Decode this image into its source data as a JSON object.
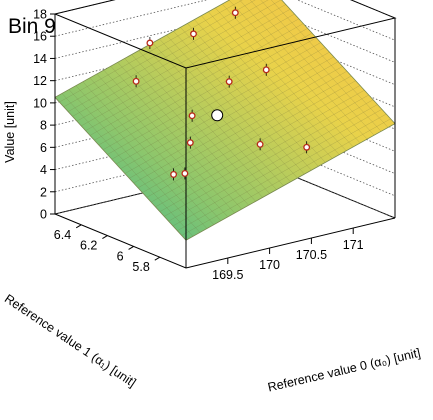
{
  "chart_data": {
    "type": "surface3d",
    "title": "Bin 9",
    "xlabel": "Reference value 0 (α₀) [unit]",
    "ylabel": "Reference value 1 (α₁) [unit]",
    "zlabel": "Value [unit]",
    "xlim": [
      169.0,
      171.5
    ],
    "ylim": [
      5.6,
      6.6
    ],
    "zlim": [
      0,
      18
    ],
    "x_ticks": [
      "169.5",
      "170",
      "170.5",
      "171"
    ],
    "y_ticks": [
      "5.8",
      "6",
      "6.2",
      "6.4"
    ],
    "z_ticks": [
      "0",
      "2",
      "4",
      "6",
      "8",
      "10",
      "12",
      "14",
      "16",
      "18"
    ],
    "surface": {
      "model": "plane",
      "corner_values": {
        "x_min_y_max": 10.5,
        "x_max_y_max": 16.5,
        "x_min_y_min": 2.5,
        "x_max_y_min": 8.5
      },
      "colormap": [
        "#2fb597",
        "#8cc66c",
        "#e9d24a",
        "#f9bd45"
      ]
    },
    "points": [
      {
        "x": 169.5,
        "y": 6.3,
        "z": 12.5
      },
      {
        "x": 169.9,
        "y": 6.45,
        "z": 14.5
      },
      {
        "x": 170.5,
        "y": 6.5,
        "z": 14.0
      },
      {
        "x": 171.0,
        "y": 6.5,
        "z": 15.0
      },
      {
        "x": 170.3,
        "y": 6.1,
        "z": 12.0
      },
      {
        "x": 169.7,
        "y": 6.0,
        "z": 10.5
      },
      {
        "x": 170.9,
        "y": 6.2,
        "z": 11.5
      },
      {
        "x": 169.6,
        "y": 5.95,
        "z": 8.5
      },
      {
        "x": 170.2,
        "y": 5.8,
        "z": 8.0
      },
      {
        "x": 170.6,
        "y": 5.7,
        "z": 7.5
      },
      {
        "x": 169.3,
        "y": 5.8,
        "z": 7.0
      },
      {
        "x": 169.4,
        "y": 5.95,
        "z": 6.0
      }
    ],
    "reference_point": {
      "x": 170.0,
      "y": 6.0,
      "z": 10.0
    },
    "grid": true,
    "legend": "none"
  }
}
